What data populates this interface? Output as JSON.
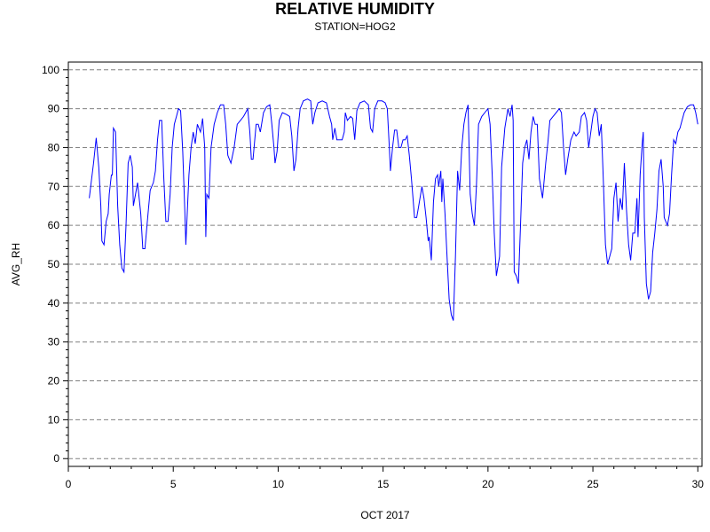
{
  "chart_data": {
    "type": "line",
    "title": "RELATIVE HUMIDITY",
    "subtitle": "STATION=HOG2",
    "xlabel": "OCT 2017",
    "ylabel": "AVG_RH",
    "xlim": [
      0,
      30.2
    ],
    "ylim": [
      -2,
      102
    ],
    "xticks": [
      0,
      5,
      10,
      15,
      20,
      25,
      30
    ],
    "yticks": [
      0,
      10,
      20,
      30,
      40,
      50,
      60,
      70,
      80,
      90,
      100
    ],
    "grid": "horizontal dashed",
    "line_color": "#0000ff",
    "series": [
      {
        "values": [
          [
            1.0,
            67
          ],
          [
            1.2,
            76
          ],
          [
            1.33,
            82.5
          ],
          [
            1.45,
            75
          ],
          [
            1.55,
            65
          ],
          [
            1.6,
            56
          ],
          [
            1.7,
            55
          ],
          [
            1.8,
            61
          ],
          [
            1.9,
            63
          ],
          [
            1.95,
            68
          ],
          [
            2.05,
            73
          ],
          [
            2.1,
            73
          ],
          [
            2.15,
            85
          ],
          [
            2.25,
            84
          ],
          [
            2.35,
            65
          ],
          [
            2.45,
            55
          ],
          [
            2.55,
            49
          ],
          [
            2.65,
            48
          ],
          [
            2.75,
            60
          ],
          [
            2.85,
            76
          ],
          [
            2.95,
            78
          ],
          [
            3.05,
            75
          ],
          [
            3.1,
            65
          ],
          [
            3.2,
            68
          ],
          [
            3.3,
            71
          ],
          [
            3.45,
            63
          ],
          [
            3.55,
            54
          ],
          [
            3.65,
            54
          ],
          [
            3.8,
            63
          ],
          [
            3.9,
            69
          ],
          [
            4.05,
            71
          ],
          [
            4.15,
            74
          ],
          [
            4.25,
            82
          ],
          [
            4.35,
            87
          ],
          [
            4.45,
            87
          ],
          [
            4.55,
            72
          ],
          [
            4.65,
            61
          ],
          [
            4.75,
            61
          ],
          [
            4.85,
            68
          ],
          [
            4.95,
            80
          ],
          [
            5.05,
            86
          ],
          [
            5.15,
            88
          ],
          [
            5.25,
            90
          ],
          [
            5.35,
            89.5
          ],
          [
            5.45,
            79
          ],
          [
            5.55,
            64
          ],
          [
            5.6,
            55
          ],
          [
            5.75,
            73
          ],
          [
            5.85,
            80
          ],
          [
            5.95,
            84
          ],
          [
            6.05,
            81
          ],
          [
            6.15,
            86
          ],
          [
            6.3,
            84
          ],
          [
            6.4,
            87.5
          ],
          [
            6.5,
            80
          ],
          [
            6.55,
            57
          ],
          [
            6.6,
            68
          ],
          [
            6.7,
            67
          ],
          [
            6.8,
            80
          ],
          [
            6.95,
            86
          ],
          [
            7.1,
            89
          ],
          [
            7.25,
            91
          ],
          [
            7.4,
            91
          ],
          [
            7.5,
            86
          ],
          [
            7.6,
            78
          ],
          [
            7.75,
            76
          ],
          [
            7.9,
            80
          ],
          [
            8.05,
            86
          ],
          [
            8.2,
            87
          ],
          [
            8.35,
            88
          ],
          [
            8.45,
            89
          ],
          [
            8.55,
            90
          ],
          [
            8.65,
            84
          ],
          [
            8.72,
            77
          ],
          [
            8.8,
            77
          ],
          [
            8.95,
            86
          ],
          [
            9.05,
            86
          ],
          [
            9.15,
            84
          ],
          [
            9.3,
            89
          ],
          [
            9.45,
            90.5
          ],
          [
            9.6,
            91
          ],
          [
            9.7,
            86
          ],
          [
            9.8,
            80
          ],
          [
            9.85,
            76
          ],
          [
            9.95,
            79
          ],
          [
            10.05,
            87
          ],
          [
            10.2,
            89
          ],
          [
            10.4,
            88.5
          ],
          [
            10.55,
            88
          ],
          [
            10.65,
            83
          ],
          [
            10.75,
            74
          ],
          [
            10.85,
            77
          ],
          [
            10.95,
            85
          ],
          [
            11.05,
            90
          ],
          [
            11.2,
            92
          ],
          [
            11.4,
            92.5
          ],
          [
            11.55,
            92
          ],
          [
            11.65,
            86
          ],
          [
            11.75,
            89
          ],
          [
            11.9,
            91.5
          ],
          [
            12.1,
            92
          ],
          [
            12.3,
            91.5
          ],
          [
            12.45,
            88
          ],
          [
            12.55,
            86
          ],
          [
            12.6,
            82
          ],
          [
            12.7,
            85
          ],
          [
            12.8,
            82
          ],
          [
            12.95,
            82
          ],
          [
            13.05,
            82
          ],
          [
            13.15,
            84
          ],
          [
            13.2,
            89
          ],
          [
            13.3,
            87
          ],
          [
            13.45,
            88
          ],
          [
            13.55,
            87.5
          ],
          [
            13.65,
            82
          ],
          [
            13.75,
            89.5
          ],
          [
            13.9,
            91.5
          ],
          [
            14.1,
            92
          ],
          [
            14.3,
            91
          ],
          [
            14.4,
            85
          ],
          [
            14.5,
            84
          ],
          [
            14.6,
            90
          ],
          [
            14.75,
            92
          ],
          [
            14.95,
            92
          ],
          [
            15.1,
            91.5
          ],
          [
            15.2,
            90
          ],
          [
            15.3,
            80
          ],
          [
            15.35,
            74
          ],
          [
            15.45,
            80
          ],
          [
            15.55,
            84.5
          ],
          [
            15.65,
            84.5
          ],
          [
            15.75,
            80
          ],
          [
            15.85,
            80
          ],
          [
            15.95,
            82
          ],
          [
            16.05,
            82
          ],
          [
            16.15,
            83
          ],
          [
            16.25,
            78
          ],
          [
            16.35,
            72
          ],
          [
            16.5,
            62
          ],
          [
            16.6,
            62
          ],
          [
            16.7,
            65
          ],
          [
            16.85,
            70
          ],
          [
            16.95,
            67
          ],
          [
            17.05,
            62
          ],
          [
            17.15,
            56
          ],
          [
            17.2,
            57
          ],
          [
            17.3,
            51
          ],
          [
            17.4,
            66
          ],
          [
            17.5,
            72
          ],
          [
            17.6,
            73
          ],
          [
            17.65,
            70
          ],
          [
            17.75,
            74
          ],
          [
            17.8,
            66
          ],
          [
            17.85,
            72
          ],
          [
            17.95,
            63
          ],
          [
            18.05,
            52
          ],
          [
            18.15,
            41
          ],
          [
            18.25,
            37
          ],
          [
            18.35,
            35.5
          ],
          [
            18.45,
            52
          ],
          [
            18.55,
            74
          ],
          [
            18.65,
            69
          ],
          [
            18.75,
            80
          ],
          [
            18.85,
            86
          ],
          [
            18.95,
            89
          ],
          [
            19.05,
            91
          ],
          [
            19.15,
            68
          ],
          [
            19.25,
            63
          ],
          [
            19.35,
            60
          ],
          [
            19.45,
            70
          ],
          [
            19.55,
            86
          ],
          [
            19.7,
            88
          ],
          [
            19.85,
            89
          ],
          [
            20.0,
            90
          ],
          [
            20.1,
            86
          ],
          [
            20.2,
            73
          ],
          [
            20.3,
            58
          ],
          [
            20.4,
            47
          ],
          [
            20.55,
            52
          ],
          [
            20.65,
            75
          ],
          [
            20.8,
            85
          ],
          [
            20.95,
            90
          ],
          [
            21.05,
            88
          ],
          [
            21.15,
            91
          ],
          [
            21.2,
            87
          ],
          [
            21.25,
            48
          ],
          [
            21.35,
            47
          ],
          [
            21.45,
            45
          ],
          [
            21.55,
            60
          ],
          [
            21.65,
            76
          ],
          [
            21.75,
            80
          ],
          [
            21.85,
            82
          ],
          [
            21.95,
            77
          ],
          [
            22.05,
            84
          ],
          [
            22.15,
            88
          ],
          [
            22.25,
            86
          ],
          [
            22.35,
            86
          ],
          [
            22.45,
            72
          ],
          [
            22.6,
            67
          ],
          [
            22.75,
            76
          ],
          [
            22.85,
            81
          ],
          [
            22.95,
            87
          ],
          [
            23.1,
            88
          ],
          [
            23.25,
            89
          ],
          [
            23.4,
            90
          ],
          [
            23.5,
            89
          ],
          [
            23.6,
            80
          ],
          [
            23.7,
            73
          ],
          [
            23.8,
            77
          ],
          [
            23.95,
            82
          ],
          [
            24.1,
            84
          ],
          [
            24.2,
            83
          ],
          [
            24.35,
            84
          ],
          [
            24.45,
            88
          ],
          [
            24.6,
            89
          ],
          [
            24.7,
            87
          ],
          [
            24.8,
            80
          ],
          [
            24.9,
            84
          ],
          [
            25.0,
            88
          ],
          [
            25.1,
            90
          ],
          [
            25.2,
            89
          ],
          [
            25.3,
            83
          ],
          [
            25.4,
            86
          ],
          [
            25.5,
            71
          ],
          [
            25.6,
            55
          ],
          [
            25.7,
            50
          ],
          [
            25.8,
            52
          ],
          [
            25.9,
            54
          ],
          [
            26.0,
            67
          ],
          [
            26.1,
            71
          ],
          [
            26.2,
            61
          ],
          [
            26.3,
            67
          ],
          [
            26.4,
            64
          ],
          [
            26.5,
            76
          ],
          [
            26.6,
            64
          ],
          [
            26.7,
            55
          ],
          [
            26.8,
            51
          ],
          [
            26.9,
            58
          ],
          [
            27.0,
            58
          ],
          [
            27.1,
            67
          ],
          [
            27.15,
            57
          ],
          [
            27.25,
            73
          ],
          [
            27.35,
            81
          ],
          [
            27.4,
            84
          ],
          [
            27.45,
            62
          ],
          [
            27.55,
            45
          ],
          [
            27.65,
            41
          ],
          [
            27.75,
            43
          ],
          [
            27.85,
            53
          ],
          [
            27.95,
            58
          ],
          [
            28.05,
            64
          ],
          [
            28.15,
            74
          ],
          [
            28.25,
            77
          ],
          [
            28.35,
            70
          ],
          [
            28.4,
            62
          ],
          [
            28.55,
            60
          ],
          [
            28.65,
            63
          ],
          [
            28.75,
            73
          ],
          [
            28.85,
            82
          ],
          [
            28.95,
            81
          ],
          [
            29.05,
            84
          ],
          [
            29.15,
            85
          ],
          [
            29.25,
            87
          ],
          [
            29.35,
            89
          ],
          [
            29.5,
            90.5
          ],
          [
            29.65,
            91
          ],
          [
            29.8,
            91
          ],
          [
            29.9,
            89
          ],
          [
            30.0,
            86
          ]
        ]
      }
    ]
  }
}
